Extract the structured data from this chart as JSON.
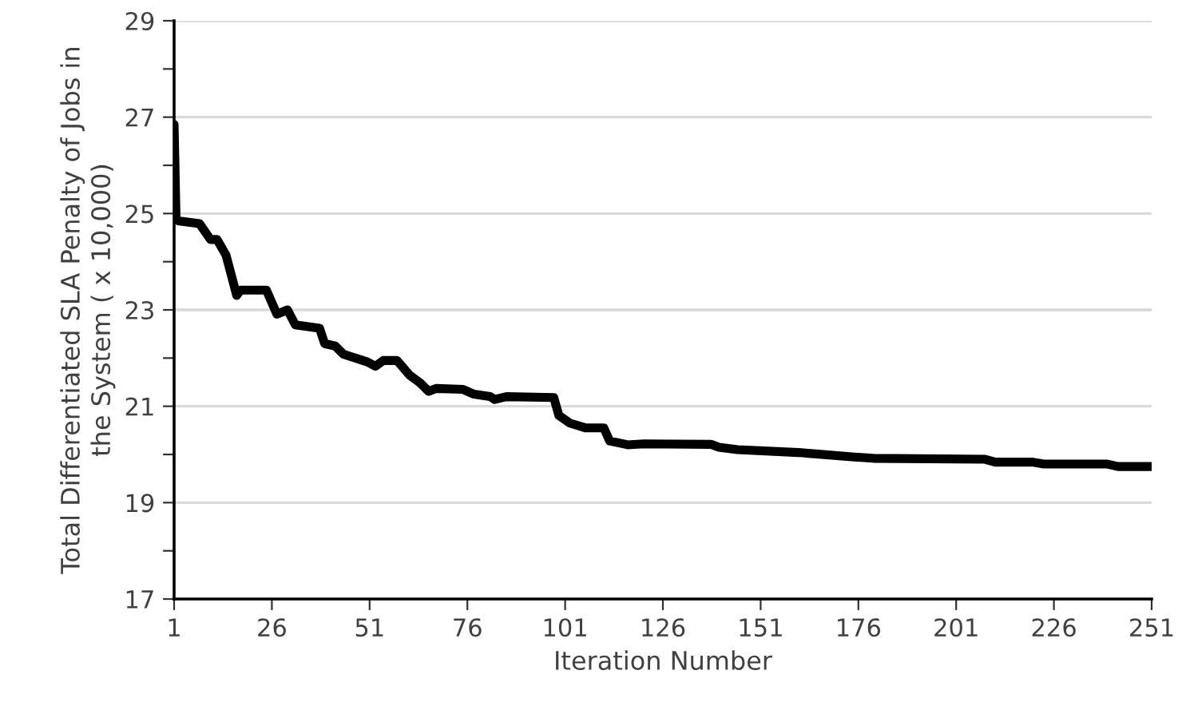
{
  "chart_data": {
    "type": "line",
    "xlabel": "Iteration Number",
    "ylabel": "Total Differentiated SLA Penalty of Jobs in\nthe System ( x 10,000)",
    "series": [
      {
        "color": "#000000",
        "x": [
          1,
          1.5,
          2,
          7.5,
          10.3,
          12,
          14.3,
          17,
          18,
          24.6,
          27.3,
          30,
          32,
          38.2,
          39.5,
          42.2,
          44.3,
          50.4,
          52.5,
          54.5,
          58,
          61.3,
          64,
          66.1,
          68,
          74.9,
          77.7,
          81.8,
          83,
          86,
          98.1,
          99.4,
          102.2,
          106.3,
          110.9,
          112.4,
          117,
          121.1,
          138.3,
          140.3,
          145.1,
          160.7,
          174.3,
          179.8,
          208.4,
          211,
          220.6,
          223.4,
          239.7,
          242.4,
          251
        ],
        "values": [
          26.85,
          24.89,
          24.85,
          24.79,
          24.46,
          24.46,
          24.13,
          23.3,
          23.41,
          23.41,
          22.91,
          23.0,
          22.69,
          22.62,
          22.3,
          22.25,
          22.08,
          21.92,
          21.83,
          21.95,
          21.95,
          21.64,
          21.48,
          21.31,
          21.37,
          21.35,
          21.25,
          21.2,
          21.14,
          21.2,
          21.18,
          20.81,
          20.65,
          20.55,
          20.55,
          20.28,
          20.2,
          20.22,
          20.21,
          20.15,
          20.1,
          20.04,
          19.95,
          19.92,
          19.9,
          19.84,
          19.84,
          19.8,
          19.8,
          19.75,
          19.75
        ]
      }
    ],
    "xlim": [
      1,
      251
    ],
    "xticks": [
      1,
      26,
      51,
      76,
      101,
      126,
      151,
      176,
      201,
      226,
      251
    ],
    "ylim": [
      17,
      29
    ],
    "yticks": [
      17,
      {
        "value": 18,
        "label": null
      },
      19,
      {
        "value": 20,
        "label": null
      },
      21,
      {
        "value": 22,
        "label": null
      },
      23,
      {
        "value": 24,
        "label": null
      },
      25,
      {
        "value": 26,
        "label": null
      },
      27,
      {
        "value": 28,
        "label": null
      },
      29
    ],
    "grid": "y",
    "marker": "none",
    "line_style": "solid"
  }
}
